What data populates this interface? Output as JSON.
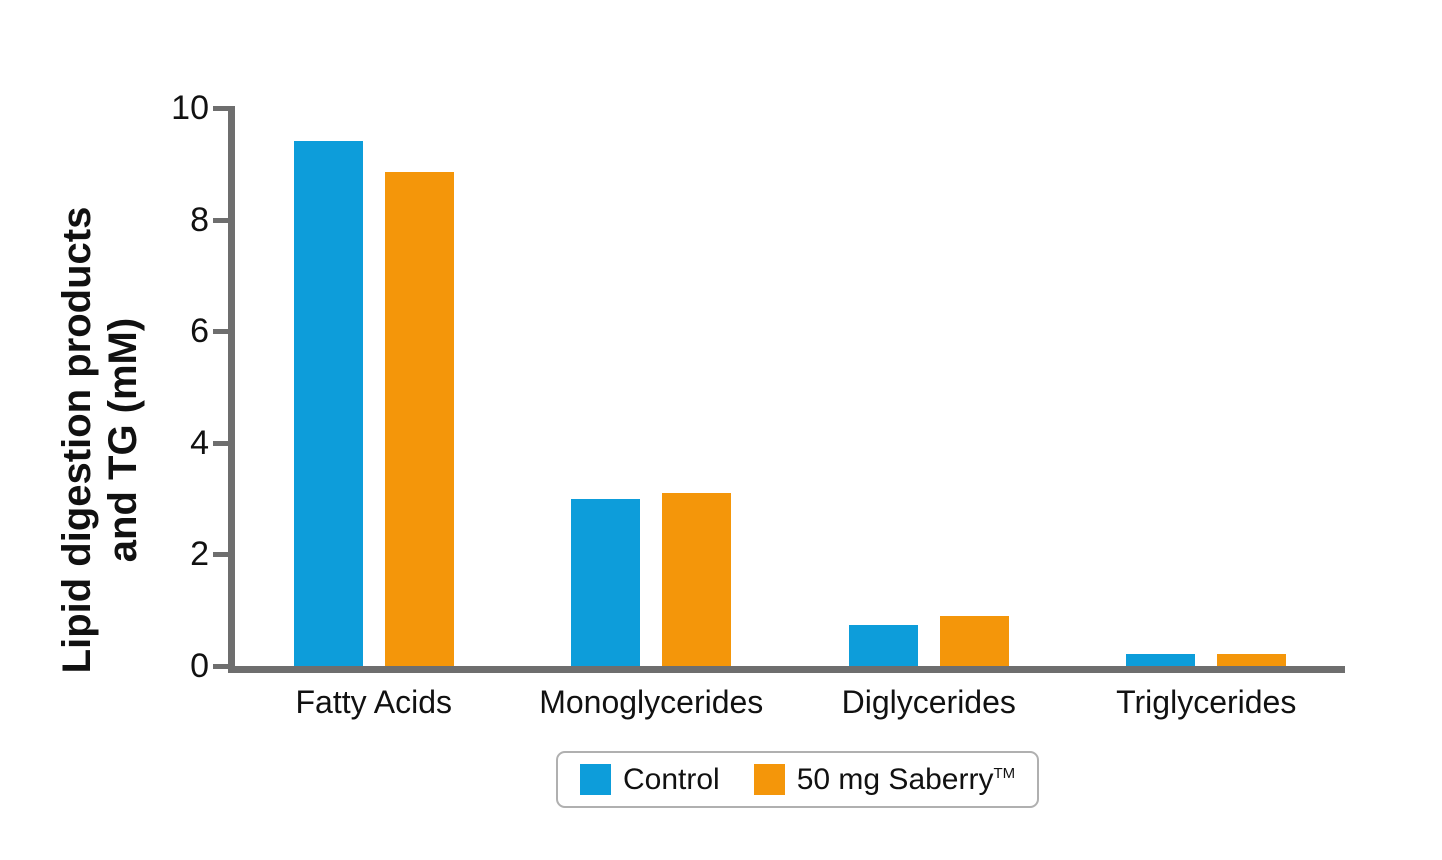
{
  "chart_data": {
    "type": "bar",
    "title": "",
    "categories": [
      "Fatty Acids",
      "Monoglycerides",
      "Diglycerides",
      "Triglycerides"
    ],
    "series": [
      {
        "name": "Control",
        "color": "#0d9dda",
        "values": [
          9.4,
          3.0,
          0.73,
          0.21
        ]
      },
      {
        "name": "50 mg Saberry",
        "trademark": "TM",
        "color": "#f4960a",
        "values": [
          8.85,
          3.1,
          0.9,
          0.22
        ]
      }
    ],
    "ylabel_line1": "Lipid digestion products",
    "ylabel_line2": "and TG (mM)",
    "xlabel": "",
    "ylim": [
      0,
      10
    ],
    "yticks": [
      0,
      2,
      4,
      6,
      8,
      10
    ],
    "grid": false,
    "legend_position": "bottom-center",
    "axis_color": "#6e6e6e",
    "text_color": "#111111",
    "legend_border_color": "#b0b0b0"
  }
}
